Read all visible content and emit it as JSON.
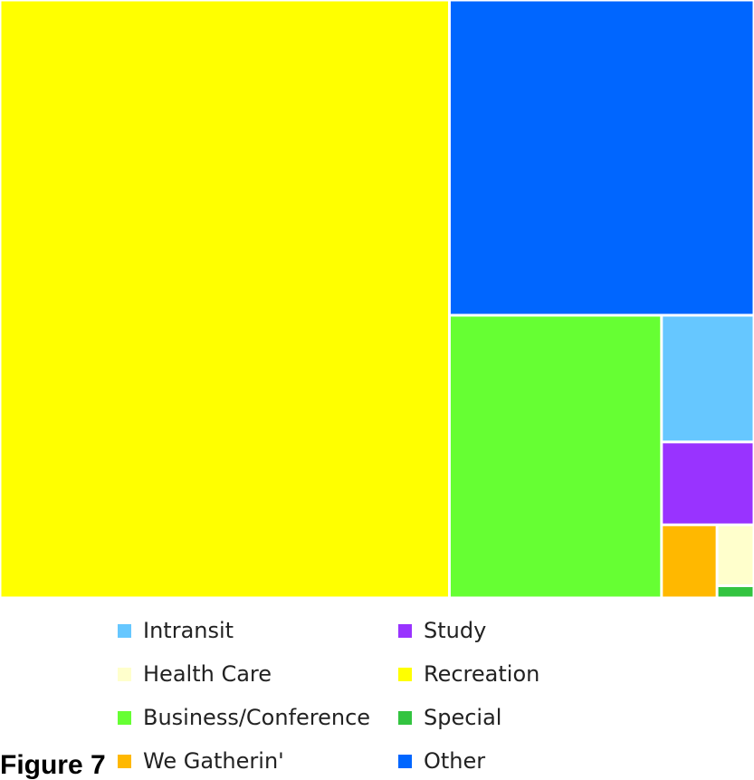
{
  "chart_data": {
    "type": "treemap",
    "categories": [
      "Intransit",
      "Study",
      "Health Care",
      "Recreation",
      "Business/Conference",
      "Special",
      "We Gatherin'",
      "Other"
    ],
    "values": [
      2.6,
      1.7,
      0.5,
      59.6,
      13.3,
      0.1,
      0.9,
      21.3
    ],
    "colors": [
      "#66c7ff",
      "#9933ff",
      "#ffffcc",
      "#ffff00",
      "#66ff33",
      "#33c440",
      "#ffb800",
      "#0066ff"
    ],
    "legend_position": "bottom"
  },
  "figure_label": "Figure 7"
}
